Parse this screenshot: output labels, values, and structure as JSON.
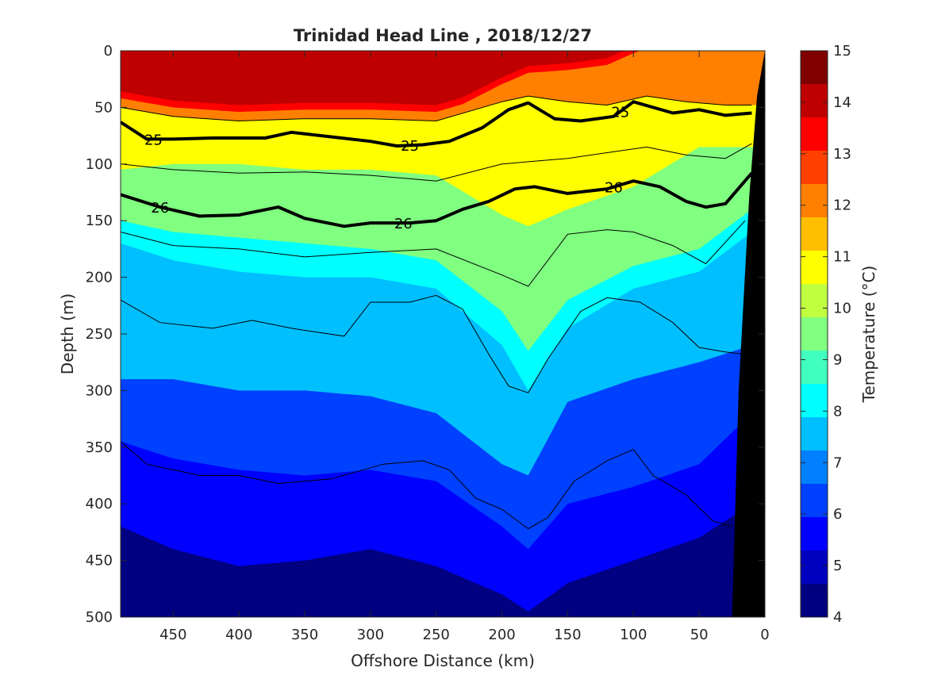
{
  "chart_data": {
    "type": "heatmap",
    "title": "Trinidad Head Line , 2018/12/27",
    "xlabel": "Offshore Distance (km)",
    "ylabel": "Depth (m)",
    "colorbar_label": "Temperature (°C)",
    "xlim": [
      490,
      0
    ],
    "x_reversed": true,
    "xticks": [
      "450",
      "400",
      "350",
      "300",
      "250",
      "200",
      "150",
      "100",
      "50",
      "0"
    ],
    "ylim": [
      0,
      500
    ],
    "y_reversed": true,
    "yticks": [
      "0",
      "50",
      "100",
      "150",
      "200",
      "250",
      "300",
      "350",
      "400",
      "450",
      "500"
    ],
    "colorbar_range": [
      4,
      15
    ],
    "colorbar_ticks": [
      "4",
      "5",
      "6",
      "7",
      "8",
      "9",
      "10",
      "11",
      "12",
      "13",
      "14",
      "15"
    ],
    "colormap": [
      "#000080",
      "#0000bf",
      "#0000ff",
      "#0040ff",
      "#0080ff",
      "#00bfff",
      "#00ffff",
      "#40ffbf",
      "#80ff80",
      "#bfff40",
      "#ffff00",
      "#ffbf00",
      "#ff8000",
      "#ff4000",
      "#ff0000",
      "#bf0000",
      "#800000"
    ],
    "temperature_profile": {
      "x": [
        490,
        450,
        400,
        350,
        300,
        250,
        200,
        180,
        150,
        100,
        50,
        10
      ],
      "depth_10C": [
        105,
        100,
        100,
        105,
        105,
        110,
        145,
        155,
        140,
        120,
        85,
        85
      ],
      "depth_9C": [
        150,
        160,
        165,
        170,
        175,
        185,
        230,
        265,
        220,
        190,
        175,
        140
      ],
      "depth_8C": [
        170,
        185,
        195,
        200,
        200,
        210,
        260,
        300,
        245,
        210,
        195,
        160
      ],
      "depth_7C": [
        290,
        290,
        300,
        300,
        305,
        320,
        365,
        375,
        310,
        290,
        275,
        260
      ],
      "depth_6C": [
        345,
        360,
        370,
        375,
        370,
        380,
        420,
        440,
        400,
        385,
        365,
        320
      ],
      "depth_5C": [
        420,
        440,
        455,
        450,
        440,
        455,
        480,
        495,
        470,
        450,
        430,
        400
      ]
    },
    "series": [
      {
        "name": "25",
        "x": [
          490,
          470,
          450,
          420,
          380,
          360,
          330,
          300,
          280,
          260,
          240,
          215,
          195,
          180,
          160,
          140,
          115,
          100,
          70,
          50,
          30,
          10
        ],
        "depth": [
          63,
          78,
          78,
          77,
          77,
          72,
          76,
          80,
          84,
          83,
          80,
          68,
          52,
          46,
          60,
          62,
          58,
          45,
          55,
          52,
          57,
          55
        ]
      },
      {
        "name": "26",
        "x": [
          490,
          460,
          430,
          400,
          370,
          350,
          320,
          300,
          270,
          250,
          230,
          210,
          190,
          175,
          150,
          120,
          100,
          80,
          60,
          45,
          30,
          10
        ],
        "depth": [
          127,
          138,
          146,
          145,
          138,
          148,
          155,
          152,
          152,
          150,
          140,
          133,
          122,
          120,
          126,
          122,
          115,
          120,
          133,
          138,
          135,
          108
        ]
      }
    ],
    "thin_isopycnals": [
      {
        "x": [
          490,
          450,
          400,
          350,
          300,
          250,
          200,
          180,
          150,
          120,
          90,
          60,
          30,
          10
        ],
        "depth": [
          50,
          58,
          62,
          60,
          60,
          62,
          45,
          40,
          45,
          48,
          40,
          45,
          48,
          48
        ]
      },
      {
        "x": [
          490,
          450,
          400,
          350,
          300,
          250,
          200,
          180,
          150,
          120,
          90,
          60,
          30,
          10
        ],
        "depth": [
          100,
          105,
          108,
          107,
          110,
          115,
          100,
          98,
          95,
          90,
          85,
          92,
          95,
          82
        ]
      },
      {
        "x": [
          490,
          450,
          400,
          350,
          300,
          250,
          200,
          180,
          150,
          120,
          100,
          70,
          45,
          15
        ],
        "depth": [
          160,
          172,
          175,
          182,
          178,
          175,
          198,
          208,
          162,
          158,
          160,
          172,
          188,
          150
        ]
      },
      {
        "x": [
          490,
          460,
          420,
          390,
          360,
          320,
          300,
          270,
          250,
          230,
          210,
          195,
          180,
          165,
          140,
          120,
          95,
          70,
          50,
          30,
          15
        ],
        "depth": [
          220,
          240,
          245,
          238,
          245,
          252,
          222,
          222,
          216,
          228,
          268,
          296,
          302,
          272,
          230,
          218,
          222,
          240,
          262,
          266,
          268
        ]
      },
      {
        "x": [
          490,
          470,
          430,
          400,
          370,
          330,
          290,
          260,
          240,
          220,
          200,
          180,
          165,
          145,
          120,
          100,
          85,
          60,
          40,
          25
        ],
        "depth": [
          345,
          365,
          375,
          375,
          382,
          378,
          365,
          362,
          370,
          395,
          405,
          422,
          412,
          380,
          362,
          352,
          375,
          392,
          415,
          420
        ]
      }
    ],
    "bathymetry": "black wedge along the 0 km edge below the surface"
  }
}
